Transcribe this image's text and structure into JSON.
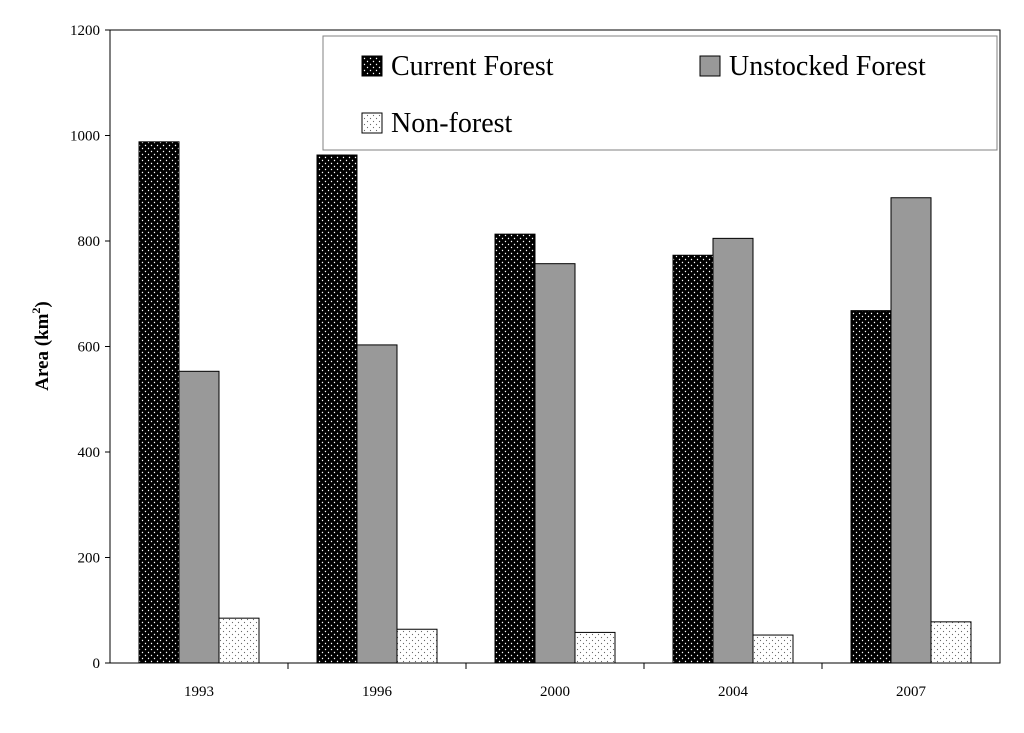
{
  "chart_data": {
    "type": "bar",
    "categories": [
      "1993",
      "1996",
      "2000",
      "2004",
      "2007"
    ],
    "series": [
      {
        "name": "Current Forest",
        "values": [
          988,
          963,
          813,
          773,
          668
        ],
        "fill": "#000000",
        "dot": "#ffffff"
      },
      {
        "name": "Unstocked Forest",
        "values": [
          553,
          603,
          757,
          805,
          882
        ],
        "fill": "#999999"
      },
      {
        "name": "Non-forest",
        "values": [
          85,
          64,
          58,
          53,
          78
        ],
        "fill": "#ffffff",
        "dot": "#555555"
      }
    ],
    "ylabel_main": "Area (km",
    "ylabel_sup": "2",
    "ylabel_close": ")",
    "ylim": [
      0,
      1200
    ],
    "yticks": [
      0,
      200,
      400,
      600,
      800,
      1000,
      1200
    ],
    "legend_position": "top-right",
    "grid": false
  }
}
